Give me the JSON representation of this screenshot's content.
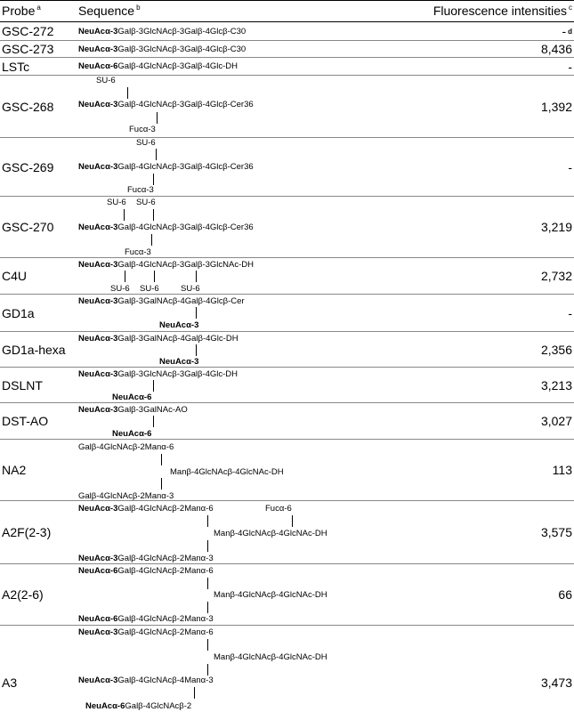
{
  "header": {
    "probe": "Probe",
    "probe_note": "a",
    "sequence": "Sequence",
    "sequence_note": "b",
    "intensity": "Fluorescence intensities",
    "intensity_note": "c"
  },
  "rows": [
    {
      "probe": "GSC-272",
      "sequence": [
        "NeuAcα-3",
        "Galβ-3GlcNAcβ-3Galβ-4Glcβ-C30"
      ],
      "intensity": "-",
      "intensity_note": "d"
    },
    {
      "probe": "GSC-273",
      "sequence": [
        "NeuAcα-3",
        "Galβ-3GlcNAcβ-3Galβ-4Glcβ-C30"
      ],
      "intensity": "8,436"
    },
    {
      "probe": "LSTc",
      "sequence": [
        "NeuAcα-6",
        "Galβ-4GlcNAcβ-3Galβ-4Glc-DH"
      ],
      "intensity": "-"
    },
    {
      "probe": "GSC-268",
      "sequence": [
        "SU-6",
        "NeuAcα-3",
        "Galβ-4GlcNAcβ-3Galβ-4Glcβ-Cer36",
        "Fucα-3"
      ],
      "intensity": "1,392"
    },
    {
      "probe": "GSC-269",
      "sequence": [
        "SU-6",
        "NeuAcα-3",
        "Galβ-4GlcNAcβ-3Galβ-4Glcβ-Cer36",
        "Fucα-3"
      ],
      "intensity": "-"
    },
    {
      "probe": "GSC-270",
      "sequence": [
        "SU-6",
        "SU-6",
        "NeuAcα-3",
        "Galβ-4GlcNAcβ-3Galβ-4Glcβ-Cer36",
        "Fucα-3"
      ],
      "intensity": "3,219"
    },
    {
      "probe": "C4U",
      "sequence": [
        "NeuAcα-3",
        "Galβ-4GlcNAcβ-3Galβ-3GlcNAc-DH",
        "SU-6",
        "SU-6",
        "SU-6"
      ],
      "intensity": "2,732"
    },
    {
      "probe": "GD1a",
      "sequence": [
        "NeuAcα-3",
        "Galβ-3GalNAcβ-4Galβ-4Glcβ-Cer",
        "NeuAcα-3"
      ],
      "intensity": "-"
    },
    {
      "probe": "GD1a-hexa",
      "sequence": [
        "NeuAcα-3",
        "Galβ-3GalNAcβ-4Galβ-4Glc-DH",
        "NeuAcα-3"
      ],
      "intensity": "2,356"
    },
    {
      "probe": "DSLNT",
      "sequence": [
        "NeuAcα-3",
        "Galβ-3GlcNAcβ-3Galβ-4Glc-DH",
        "NeuAcα-6"
      ],
      "intensity": "3,213"
    },
    {
      "probe": "DST-AO",
      "sequence": [
        "NeuAcα-3",
        "Galβ-3GalNAc-AO",
        "NeuAcα-6"
      ],
      "intensity": "3,027"
    },
    {
      "probe": "NA2",
      "sequence": [
        "Galβ-4GlcNAcβ-2Manα-6",
        "Manβ-4GlcNAcβ-4GlcNAc-DH",
        "Galβ-4GlcNAcβ-2Manα-3"
      ],
      "intensity": "113"
    },
    {
      "probe": "A2F(2-3)",
      "sequence": [
        "NeuAcα-3",
        "Galβ-4GlcNAcβ-2Manα-6",
        "Fucα-6",
        "Manβ-4GlcNAcβ-4GlcNAc-DH",
        "NeuAcα-3",
        "Galβ-4GlcNAcβ-2Manα-3"
      ],
      "intensity": "3,575"
    },
    {
      "probe": "A2(2-6)",
      "sequence": [
        "NeuAcα-6",
        "Galβ-4GlcNAcβ-2Manα-6",
        "Manβ-4GlcNAcβ-4GlcNAc-DH",
        "NeuAcα-6",
        "Galβ-4GlcNAcβ-2Manα-3"
      ],
      "intensity": "66"
    },
    {
      "probe": "A3",
      "sequence": [
        "NeuAcα-3",
        "Galβ-4GlcNAcβ-2Manα-6",
        "Manβ-4GlcNAcβ-4GlcNAc-DH",
        "NeuAcα-3",
        "Galβ-4GlcNAcβ-4Manα-3",
        "NeuAcα-6",
        "Galβ-4GlcNAcβ-2"
      ],
      "intensity": "3,473"
    }
  ]
}
